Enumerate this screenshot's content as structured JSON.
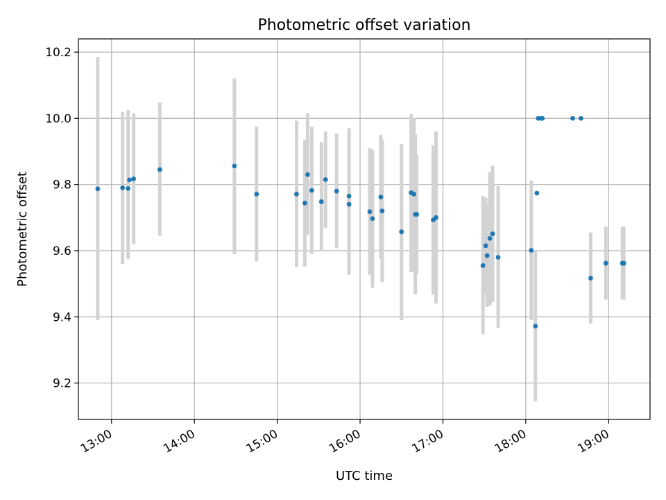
{
  "chart_data": {
    "type": "scatter",
    "title": "Photometric offset variation",
    "xlabel": "UTC time",
    "ylabel": "Photometric offset",
    "x_unit": "UTC time (HH:MM)",
    "x_ticks": [
      "13:00",
      "14:00",
      "15:00",
      "16:00",
      "17:00",
      "18:00",
      "19:00"
    ],
    "y_ticks": [
      "9.2",
      "9.4",
      "9.6",
      "9.8",
      "10.0",
      "10.2"
    ],
    "xlim": [
      "12:36",
      "19:30"
    ],
    "ylim": [
      9.09,
      10.24
    ],
    "grid": true,
    "legend": "none",
    "colors": {
      "marker": "#1f77b4",
      "errorbar": "#d3d3d3",
      "grid": "#b0b0b0"
    },
    "points": [
      {
        "x": "12:50",
        "y": 9.787,
        "lo": 9.39,
        "hi": 10.185
      },
      {
        "x": "13:08",
        "y": 9.79,
        "lo": 9.56,
        "hi": 10.02
      },
      {
        "x": "13:12",
        "y": 9.788,
        "lo": 9.575,
        "hi": 10.025
      },
      {
        "x": "13:13",
        "y": 9.814,
        "lo": null,
        "hi": null
      },
      {
        "x": "13:16",
        "y": 9.817,
        "lo": 9.62,
        "hi": 10.015
      },
      {
        "x": "13:35",
        "y": 9.845,
        "lo": 9.645,
        "hi": 10.048
      },
      {
        "x": "14:29",
        "y": 9.856,
        "lo": 9.59,
        "hi": 10.12
      },
      {
        "x": "14:45",
        "y": 9.771,
        "lo": 9.568,
        "hi": 9.975
      },
      {
        "x": "15:14",
        "y": 9.771,
        "lo": 9.55,
        "hi": 9.993
      },
      {
        "x": "15:20",
        "y": 9.744,
        "lo": 9.552,
        "hi": 9.935
      },
      {
        "x": "15:22",
        "y": 9.83,
        "lo": 9.648,
        "hi": 10.015
      },
      {
        "x": "15:25",
        "y": 9.782,
        "lo": 9.59,
        "hi": 9.975
      },
      {
        "x": "15:32",
        "y": 9.748,
        "lo": 9.6,
        "hi": 9.928
      },
      {
        "x": "15:35",
        "y": 9.815,
        "lo": 9.668,
        "hi": 9.96
      },
      {
        "x": "15:43",
        "y": 9.78,
        "lo": 9.607,
        "hi": 9.953
      },
      {
        "x": "15:52",
        "y": 9.765,
        "lo": 9.56,
        "hi": 9.97
      },
      {
        "x": "15:52",
        "y": 9.74,
        "lo": 9.527,
        "hi": 9.955
      },
      {
        "x": "16:07",
        "y": 9.718,
        "lo": 9.527,
        "hi": 9.91
      },
      {
        "x": "16:09",
        "y": 9.697,
        "lo": 9.488,
        "hi": 9.905
      },
      {
        "x": "16:15",
        "y": 9.762,
        "lo": 9.575,
        "hi": 9.95
      },
      {
        "x": "16:16",
        "y": 9.72,
        "lo": 9.505,
        "hi": 9.935
      },
      {
        "x": "16:30",
        "y": 9.657,
        "lo": 9.39,
        "hi": 9.922
      },
      {
        "x": "16:37",
        "y": 9.775,
        "lo": 9.535,
        "hi": 10.013
      },
      {
        "x": "16:39",
        "y": 9.771,
        "lo": 9.54,
        "hi": 10.002
      },
      {
        "x": "16:40",
        "y": 9.71,
        "lo": 9.468,
        "hi": 9.952
      },
      {
        "x": "16:41",
        "y": 9.71,
        "lo": 9.53,
        "hi": 9.89
      },
      {
        "x": "16:53",
        "y": 9.693,
        "lo": 9.468,
        "hi": 9.918
      },
      {
        "x": "16:55",
        "y": 9.7,
        "lo": 9.44,
        "hi": 9.96
      },
      {
        "x": "17:29",
        "y": 9.555,
        "lo": 9.347,
        "hi": 9.765
      },
      {
        "x": "17:31",
        "y": 9.615,
        "lo": 9.47,
        "hi": 9.76
      },
      {
        "x": "17:32",
        "y": 9.585,
        "lo": 9.43,
        "hi": 9.74
      },
      {
        "x": "17:34",
        "y": 9.637,
        "lo": 9.435,
        "hi": 9.838
      },
      {
        "x": "17:36",
        "y": 9.651,
        "lo": 9.445,
        "hi": 9.857
      },
      {
        "x": "17:40",
        "y": 9.58,
        "lo": 9.367,
        "hi": 9.795
      },
      {
        "x": "18:04",
        "y": 9.601,
        "lo": 9.39,
        "hi": 9.812
      },
      {
        "x": "18:07",
        "y": 9.372,
        "lo": 9.145,
        "hi": 9.6
      },
      {
        "x": "18:08",
        "y": 9.774,
        "lo": null,
        "hi": null
      },
      {
        "x": "18:09",
        "y": 10.0,
        "lo": null,
        "hi": null
      },
      {
        "x": "18:11",
        "y": 10.0,
        "lo": null,
        "hi": null
      },
      {
        "x": "18:12",
        "y": 10.0,
        "lo": null,
        "hi": null
      },
      {
        "x": "18:34",
        "y": 10.0,
        "lo": null,
        "hi": null
      },
      {
        "x": "18:40",
        "y": 10.0,
        "lo": null,
        "hi": null
      },
      {
        "x": "18:47",
        "y": 9.517,
        "lo": 9.38,
        "hi": 9.655
      },
      {
        "x": "18:58",
        "y": 9.562,
        "lo": 9.452,
        "hi": 9.672
      },
      {
        "x": "19:10",
        "y": 9.562,
        "lo": 9.452,
        "hi": 9.672
      },
      {
        "x": "19:11",
        "y": 9.562,
        "lo": 9.452,
        "hi": 9.672
      }
    ]
  }
}
